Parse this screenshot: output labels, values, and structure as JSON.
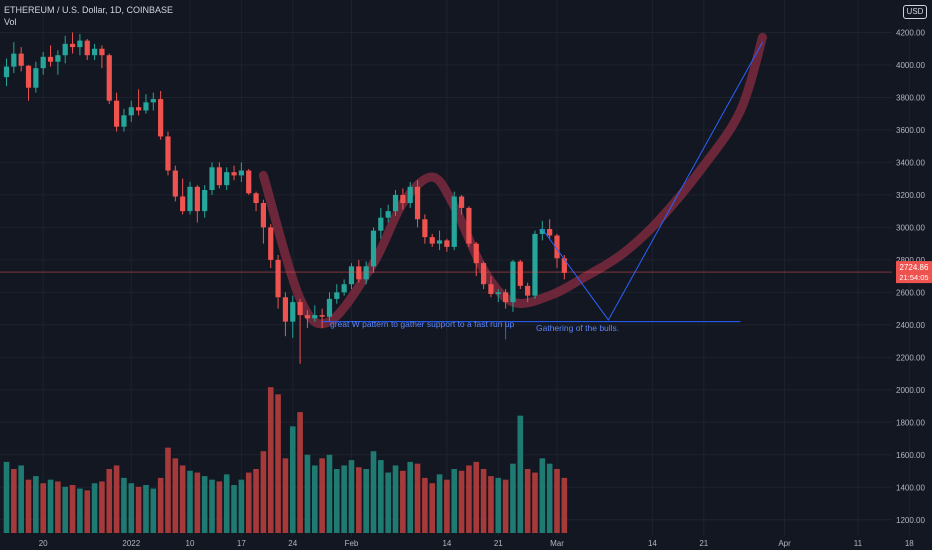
{
  "header": {
    "symbol_line": "ETHEREUM / U.S. Dollar, 1D, COINBASE",
    "volume_label": "Vol"
  },
  "currency_badge": "USD",
  "price_tag": {
    "value": "2724.86",
    "countdown": "21:54:05"
  },
  "annotations": [
    {
      "text": "great W pattern to gather support to a fast run up"
    },
    {
      "text": "Gathering of the bulls."
    }
  ],
  "colors": {
    "background": "#131722",
    "up": "#26a69a",
    "down": "#ef5350",
    "volume_up": "#1f7a72",
    "volume_down": "#a63a3a",
    "drawing": "#2962ff",
    "brush": "#7b2a3d",
    "price_line": "#ef5350",
    "grid": "#1e222d",
    "text": "#b2b5be"
  },
  "chart_data": {
    "type": "candlestick",
    "title": "ETHEREUM / U.S. Dollar, 1D, COINBASE",
    "price_axis": {
      "ylim": [
        1100,
        4400
      ],
      "ticks": [
        "1200.00",
        "1400.00",
        "1600.00",
        "1800.00",
        "2000.00",
        "2200.00",
        "2400.00",
        "2600.00",
        "2800.00",
        "3000.00",
        "3200.00",
        "3400.00",
        "3600.00",
        "3800.00",
        "4000.00",
        "4200.00"
      ]
    },
    "time_axis": {
      "ticks": [
        {
          "label": "20",
          "bar": 5
        },
        {
          "label": "2022",
          "bar": 17
        },
        {
          "label": "10",
          "bar": 25
        },
        {
          "label": "17",
          "bar": 32
        },
        {
          "label": "24",
          "bar": 39
        },
        {
          "label": "Feb",
          "bar": 47
        },
        {
          "label": "14",
          "bar": 60
        },
        {
          "label": "21",
          "bar": 67
        },
        {
          "label": "Mar",
          "bar": 75
        },
        {
          "label": "14",
          "bar": 88
        },
        {
          "label": "21",
          "bar": 95
        },
        {
          "label": "Apr",
          "bar": 106
        },
        {
          "label": "11",
          "bar": 116
        },
        {
          "label": "18",
          "bar": 123
        }
      ]
    },
    "candles": [
      [
        3925,
        4040,
        3870,
        3990
      ],
      [
        3990,
        4140,
        3950,
        4070
      ],
      [
        4070,
        4110,
        3960,
        3995
      ],
      [
        3995,
        4000,
        3780,
        3860
      ],
      [
        3860,
        4020,
        3830,
        3980
      ],
      [
        3980,
        4080,
        3940,
        4050
      ],
      [
        4050,
        4120,
        3990,
        4020
      ],
      [
        4020,
        4090,
        3940,
        4060
      ],
      [
        4060,
        4180,
        4010,
        4130
      ],
      [
        4130,
        4200,
        4070,
        4110
      ],
      [
        4110,
        4190,
        4060,
        4150
      ],
      [
        4150,
        4160,
        4030,
        4060
      ],
      [
        4060,
        4130,
        4030,
        4100
      ],
      [
        4100,
        4120,
        3980,
        4060
      ],
      [
        4060,
        4070,
        3760,
        3780
      ],
      [
        3780,
        3830,
        3590,
        3620
      ],
      [
        3620,
        3730,
        3590,
        3690
      ],
      [
        3690,
        3780,
        3650,
        3740
      ],
      [
        3740,
        3850,
        3690,
        3720
      ],
      [
        3720,
        3820,
        3700,
        3770
      ],
      [
        3770,
        3830,
        3720,
        3790
      ],
      [
        3790,
        3840,
        3540,
        3560
      ],
      [
        3560,
        3590,
        3320,
        3350
      ],
      [
        3350,
        3380,
        3160,
        3190
      ],
      [
        3190,
        3300,
        3080,
        3100
      ],
      [
        3100,
        3280,
        3080,
        3250
      ],
      [
        3250,
        3260,
        3030,
        3100
      ],
      [
        3100,
        3260,
        3060,
        3230
      ],
      [
        3230,
        3400,
        3200,
        3370
      ],
      [
        3370,
        3400,
        3240,
        3260
      ],
      [
        3260,
        3370,
        3230,
        3340
      ],
      [
        3340,
        3380,
        3290,
        3320
      ],
      [
        3320,
        3400,
        3280,
        3350
      ],
      [
        3350,
        3360,
        3200,
        3210
      ],
      [
        3210,
        3220,
        3100,
        3150
      ],
      [
        3150,
        3170,
        2900,
        3000
      ],
      [
        3000,
        3020,
        2750,
        2800
      ],
      [
        2800,
        2830,
        2500,
        2570
      ],
      [
        2570,
        2600,
        2330,
        2420
      ],
      [
        2420,
        2580,
        2320,
        2540
      ],
      [
        2540,
        2560,
        2160,
        2460
      ],
      [
        2460,
        2490,
        2380,
        2440
      ],
      [
        2440,
        2520,
        2420,
        2460
      ],
      [
        2460,
        2500,
        2380,
        2450
      ],
      [
        2450,
        2600,
        2420,
        2560
      ],
      [
        2560,
        2650,
        2530,
        2600
      ],
      [
        2600,
        2680,
        2580,
        2650
      ],
      [
        2650,
        2780,
        2620,
        2760
      ],
      [
        2760,
        2800,
        2660,
        2680
      ],
      [
        2680,
        2790,
        2650,
        2760
      ],
      [
        2760,
        3000,
        2720,
        2980
      ],
      [
        2980,
        3120,
        2930,
        3060
      ],
      [
        3060,
        3140,
        3030,
        3100
      ],
      [
        3100,
        3230,
        3070,
        3200
      ],
      [
        3200,
        3240,
        3110,
        3150
      ],
      [
        3150,
        3280,
        3120,
        3250
      ],
      [
        3250,
        3290,
        3000,
        3050
      ],
      [
        3050,
        3080,
        2900,
        2940
      ],
      [
        2940,
        2960,
        2880,
        2900
      ],
      [
        2900,
        2980,
        2860,
        2920
      ],
      [
        2920,
        2930,
        2850,
        2880
      ],
      [
        2880,
        3220,
        2860,
        3190
      ],
      [
        3190,
        3200,
        3080,
        3120
      ],
      [
        3120,
        3130,
        2880,
        2900
      ],
      [
        2900,
        2910,
        2700,
        2780
      ],
      [
        2780,
        2790,
        2620,
        2650
      ],
      [
        2650,
        2700,
        2570,
        2590
      ],
      [
        2590,
        2620,
        2540,
        2600
      ],
      [
        2600,
        2620,
        2500,
        2540
      ],
      [
        2540,
        2800,
        2480,
        2790
      ],
      [
        2790,
        2800,
        2620,
        2640
      ],
      [
        2640,
        2660,
        2540,
        2580
      ],
      [
        2580,
        2980,
        2560,
        2960
      ],
      [
        2960,
        3040,
        2920,
        2990
      ],
      [
        2990,
        3050,
        2930,
        2950
      ],
      [
        2950,
        2960,
        2750,
        2810
      ],
      [
        2810,
        2830,
        2680,
        2720
      ]
    ],
    "volume": [
      [
        400,
        1
      ],
      [
        360,
        0
      ],
      [
        380,
        1
      ],
      [
        300,
        0
      ],
      [
        320,
        1
      ],
      [
        280,
        0
      ],
      [
        300,
        1
      ],
      [
        290,
        0
      ],
      [
        260,
        1
      ],
      [
        270,
        0
      ],
      [
        250,
        1
      ],
      [
        240,
        0
      ],
      [
        280,
        1
      ],
      [
        290,
        0
      ],
      [
        360,
        0
      ],
      [
        380,
        0
      ],
      [
        310,
        1
      ],
      [
        280,
        1
      ],
      [
        260,
        0
      ],
      [
        270,
        1
      ],
      [
        250,
        1
      ],
      [
        310,
        0
      ],
      [
        480,
        0
      ],
      [
        420,
        0
      ],
      [
        380,
        0
      ],
      [
        350,
        1
      ],
      [
        340,
        0
      ],
      [
        320,
        1
      ],
      [
        300,
        1
      ],
      [
        290,
        0
      ],
      [
        330,
        1
      ],
      [
        270,
        1
      ],
      [
        300,
        1
      ],
      [
        340,
        0
      ],
      [
        360,
        0
      ],
      [
        460,
        0
      ],
      [
        820,
        0
      ],
      [
        780,
        0
      ],
      [
        420,
        0
      ],
      [
        600,
        1
      ],
      [
        680,
        0
      ],
      [
        440,
        1
      ],
      [
        380,
        1
      ],
      [
        420,
        0
      ],
      [
        440,
        1
      ],
      [
        360,
        1
      ],
      [
        380,
        1
      ],
      [
        410,
        1
      ],
      [
        370,
        0
      ],
      [
        360,
        1
      ],
      [
        460,
        1
      ],
      [
        410,
        1
      ],
      [
        340,
        1
      ],
      [
        380,
        1
      ],
      [
        350,
        0
      ],
      [
        400,
        1
      ],
      [
        390,
        0
      ],
      [
        310,
        0
      ],
      [
        280,
        0
      ],
      [
        330,
        1
      ],
      [
        300,
        0
      ],
      [
        360,
        1
      ],
      [
        350,
        0
      ],
      [
        380,
        0
      ],
      [
        400,
        0
      ],
      [
        360,
        0
      ],
      [
        320,
        0
      ],
      [
        310,
        1
      ],
      [
        300,
        0
      ],
      [
        390,
        1
      ],
      [
        660,
        1
      ],
      [
        360,
        0
      ],
      [
        340,
        0
      ],
      [
        420,
        1
      ],
      [
        390,
        1
      ],
      [
        360,
        0
      ],
      [
        310,
        0
      ]
    ],
    "volume_scale_max": 900,
    "last_price": 2724.86,
    "support_level": 2420,
    "projection_path": [
      {
        "bar": 73,
        "price": 2990
      },
      {
        "bar": 82,
        "price": 2430
      },
      {
        "bar": 103,
        "price": 4140
      }
    ],
    "brush_path": [
      {
        "bar": 35,
        "price": 3320
      },
      {
        "bar": 40,
        "price": 2560
      },
      {
        "bar": 44,
        "price": 2420
      },
      {
        "bar": 50,
        "price": 2780
      },
      {
        "bar": 54,
        "price": 3150
      },
      {
        "bar": 58,
        "price": 3310
      },
      {
        "bar": 61,
        "price": 3130
      },
      {
        "bar": 65,
        "price": 2740
      },
      {
        "bar": 69,
        "price": 2540
      },
      {
        "bar": 74,
        "price": 2580
      },
      {
        "bar": 79,
        "price": 2700
      },
      {
        "bar": 84,
        "price": 2840
      },
      {
        "bar": 89,
        "price": 3050
      },
      {
        "bar": 95,
        "price": 3380
      },
      {
        "bar": 100,
        "price": 3720
      },
      {
        "bar": 103,
        "price": 4170
      }
    ]
  }
}
